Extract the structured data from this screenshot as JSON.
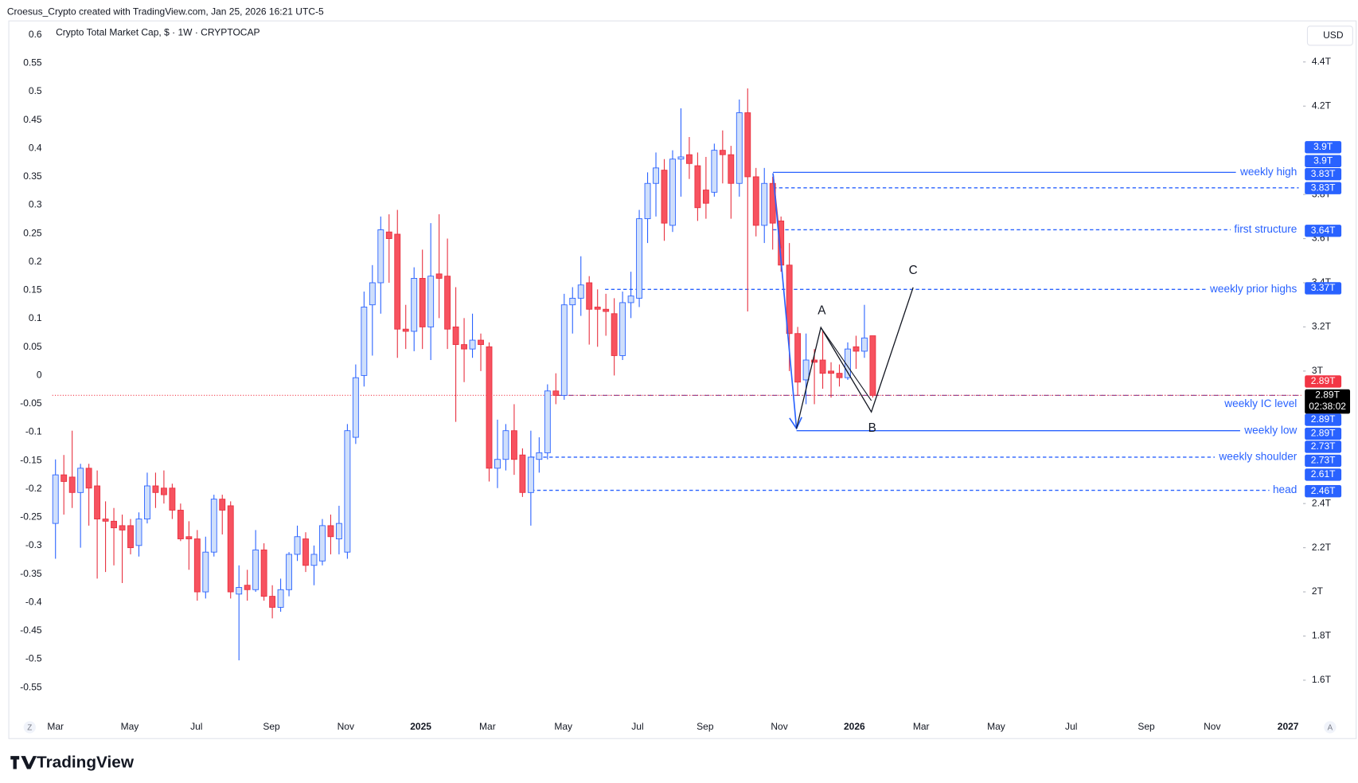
{
  "credit": "Croesus_Crypto created with TradingView.com, Jan 25, 2026 16:21 UTC-5",
  "brand": "TradingView",
  "currency": "USD",
  "scale_buttons": [
    "Z",
    "A"
  ],
  "chart_data": {
    "type": "candlestick",
    "title": "Crypto Total Market Cap, $ · 1W · CRYPTOCAP",
    "up_color": "#2962ff",
    "up_fill": "#cfdffb",
    "down_color": "#e8303f",
    "down_fill": "#f7525f",
    "level_color": "#2962ff",
    "grid": false,
    "xlim": [
      -5.6,
      149.6
    ],
    "xticks": [
      {
        "value": 0,
        "label": "Mar"
      },
      {
        "value": 8.9,
        "label": "May"
      },
      {
        "value": 16.9,
        "label": "Jul"
      },
      {
        "value": 25.9,
        "label": "Sep"
      },
      {
        "value": 34.8,
        "label": "Nov"
      },
      {
        "value": 43.8,
        "label": "2025"
      },
      {
        "value": 51.8,
        "label": "Mar"
      },
      {
        "value": 60.9,
        "label": "May"
      },
      {
        "value": 69.8,
        "label": "Jul"
      },
      {
        "value": 77.9,
        "label": "Sep"
      },
      {
        "value": 86.8,
        "label": "Nov"
      },
      {
        "value": 95.8,
        "label": "2026"
      },
      {
        "value": 103.8,
        "label": "Mar"
      },
      {
        "value": 112.8,
        "label": "May"
      },
      {
        "value": 121.8,
        "label": "Jul"
      },
      {
        "value": 130.8,
        "label": "Sep"
      },
      {
        "value": 138.7,
        "label": "Nov"
      },
      {
        "value": 147.8,
        "label": "2027"
      }
    ],
    "ylim": [
      -0.597,
      0.623
    ],
    "yticks": [
      0.6,
      0.55,
      0.5,
      0.45,
      0.4,
      0.35,
      0.3,
      0.25,
      0.2,
      0.15,
      0.1,
      0.05,
      0,
      -0.05,
      -0.1,
      -0.15,
      -0.2,
      -0.25,
      -0.3,
      -0.35,
      -0.4,
      -0.45,
      -0.5,
      -0.55
    ],
    "y2lim": [
      1.446,
      4.582
    ],
    "y2ticks": [
      {
        "value": 4.4,
        "label": "4.4T"
      },
      {
        "value": 4.2,
        "label": "4.2T"
      },
      {
        "value": 3.8,
        "label": "3.8T"
      },
      {
        "value": 3.6,
        "label": "3.6T"
      },
      {
        "value": 3.4,
        "label": "3.4T"
      },
      {
        "value": 3.2,
        "label": "3.2T"
      },
      {
        "value": 3,
        "label": "3T"
      },
      {
        "value": 2.4,
        "label": "2.4T"
      },
      {
        "value": 2.2,
        "label": "2.2T"
      },
      {
        "value": 2,
        "label": "2T"
      },
      {
        "value": 1.8,
        "label": "1.8T"
      },
      {
        "value": 1.6,
        "label": "1.6T"
      }
    ],
    "candles": {
      "axis": "y2",
      "open": [
        2.31,
        2.53,
        2.52,
        2.45,
        2.56,
        2.48,
        2.33,
        2.32,
        2.3,
        2.3,
        2.21,
        2.33,
        2.48,
        2.47,
        2.47,
        2.37,
        2.25,
        2.24,
        2.0,
        2.18,
        2.42,
        2.39,
        1.99,
        2.03,
        2.01,
        2.19,
        1.98,
        1.93,
        2.01,
        2.17,
        2.24,
        2.12,
        2.14,
        2.3,
        2.24,
        2.18,
        2.7,
        2.98,
        3.3,
        3.4,
        3.63,
        3.62,
        3.19,
        3.18,
        3.42,
        3.2,
        3.44,
        3.43,
        3.2,
        3.12,
        3.1,
        3.14,
        3.11,
        2.56,
        2.6,
        2.73,
        2.62,
        2.45,
        2.6,
        2.63,
        2.91,
        2.89,
        3.3,
        3.33,
        3.4,
        3.29,
        3.28,
        3.26,
        3.07,
        3.31,
        3.33,
        3.69,
        3.85,
        3.91,
        3.66,
        3.96,
        3.98,
        3.93,
        3.82,
        3.81,
        4.0,
        3.98,
        3.85,
        4.17,
        3.88,
        3.66,
        3.85,
        3.68,
        3.48,
        3.17,
        2.96,
        3.05,
        3.05,
        3.0,
        2.99,
        2.97,
        3.11,
        3.09,
        3.16
      ],
      "high": [
        2.6,
        2.62,
        2.73,
        2.58,
        2.58,
        2.55,
        2.41,
        2.38,
        2.35,
        2.33,
        2.36,
        2.54,
        2.54,
        2.55,
        2.49,
        2.4,
        2.32,
        2.28,
        2.25,
        2.44,
        2.44,
        2.41,
        2.12,
        2.1,
        2.28,
        2.22,
        2.03,
        2.06,
        2.18,
        2.3,
        2.27,
        2.21,
        2.33,
        2.35,
        2.39,
        2.76,
        3.03,
        3.36,
        3.48,
        3.7,
        3.71,
        3.73,
        3.3,
        3.47,
        3.55,
        3.67,
        3.71,
        3.6,
        3.38,
        3.24,
        3.26,
        3.17,
        3.13,
        2.78,
        2.76,
        2.85,
        2.65,
        2.73,
        2.7,
        2.94,
        2.99,
        3.35,
        3.38,
        3.52,
        3.43,
        3.37,
        3.35,
        3.33,
        3.36,
        3.45,
        3.73,
        3.9,
        3.99,
        3.96,
        4.0,
        4.19,
        4.06,
        3.99,
        3.97,
        4.03,
        4.09,
        4.02,
        4.23,
        4.28,
        3.92,
        3.92,
        3.88,
        3.7,
        3.58,
        3.2,
        3.17,
        3.1,
        3.18,
        3.04,
        3.03,
        3.13,
        3.16,
        3.3,
        3.16
      ],
      "low": [
        2.15,
        2.35,
        2.38,
        2.2,
        2.3,
        2.06,
        2.09,
        2.12,
        2.04,
        2.17,
        2.16,
        2.31,
        2.38,
        2.4,
        2.33,
        2.23,
        2.1,
        1.96,
        1.97,
        2.16,
        2.26,
        1.97,
        1.69,
        1.96,
        2.0,
        1.96,
        1.88,
        1.91,
        1.98,
        2.14,
        2.09,
        2.03,
        2.12,
        2.17,
        2.17,
        2.15,
        2.67,
        2.93,
        3.07,
        3.26,
        3.4,
        3.06,
        3.1,
        3.09,
        3.1,
        3.05,
        3.24,
        3.1,
        2.77,
        2.95,
        3.06,
        3.0,
        2.5,
        2.47,
        2.55,
        2.53,
        2.43,
        2.3,
        2.54,
        2.6,
        2.85,
        2.87,
        3.17,
        3.25,
        3.12,
        3.11,
        3.16,
        2.98,
        3.05,
        3.24,
        3.29,
        3.58,
        3.7,
        3.59,
        3.63,
        3.79,
        3.87,
        3.68,
        3.69,
        3.79,
        3.85,
        3.69,
        3.79,
        3.27,
        3.61,
        3.58,
        3.55,
        3.45,
        3.0,
        2.89,
        2.85,
        2.85,
        2.92,
        2.88,
        2.93,
        2.96,
        3.01,
        3.06,
        2.88
      ],
      "close": [
        2.53,
        2.5,
        2.45,
        2.56,
        2.47,
        2.33,
        2.32,
        2.29,
        2.28,
        2.2,
        2.33,
        2.48,
        2.45,
        2.44,
        2.37,
        2.24,
        2.24,
        2.0,
        2.18,
        2.42,
        2.37,
        2.0,
        2.02,
        2.01,
        2.19,
        1.98,
        1.93,
        2.01,
        2.17,
        2.25,
        2.12,
        2.17,
        2.3,
        2.25,
        2.31,
        2.73,
        2.97,
        3.29,
        3.4,
        3.64,
        3.6,
        3.19,
        3.18,
        3.42,
        3.2,
        3.43,
        3.42,
        3.19,
        3.12,
        3.1,
        3.14,
        3.12,
        2.56,
        2.6,
        2.73,
        2.6,
        2.45,
        2.61,
        2.63,
        2.91,
        2.89,
        3.3,
        3.33,
        3.39,
        3.28,
        3.28,
        3.27,
        3.07,
        3.31,
        3.34,
        3.69,
        3.85,
        3.92,
        3.67,
        3.96,
        3.97,
        3.94,
        3.74,
        3.76,
        4.0,
        3.98,
        3.85,
        4.17,
        3.88,
        3.66,
        3.85,
        3.67,
        3.48,
        3.17,
        2.95,
        3.05,
        3.04,
        2.99,
        2.99,
        2.97,
        3.1,
        3.09,
        3.15,
        2.89
      ]
    },
    "levels": [
      {
        "value": 3.9,
        "label": "weekly high",
        "dash": "solid"
      },
      {
        "value": 3.83,
        "dash": "dashed"
      },
      {
        "value": 3.64,
        "label": "first structure",
        "dash": "dashed"
      },
      {
        "value": 3.37,
        "label": "weekly prior highs",
        "dash": "dashed"
      },
      {
        "value": 2.89,
        "label": "weekly IC level",
        "dash": "dashdot"
      },
      {
        "value": 2.73,
        "label": "weekly low",
        "dash": "solid"
      },
      {
        "value": 2.61,
        "label": "weekly shoulder",
        "dash": "dashed"
      },
      {
        "value": 2.46,
        "label": "head",
        "dash": "dashed"
      }
    ],
    "badges": [
      {
        "text": "3.9T",
        "color": "#2962ff"
      },
      {
        "text": "3.9T",
        "color": "#2962ff"
      },
      {
        "text": "3.83T",
        "color": "#2962ff"
      },
      {
        "text": "3.83T",
        "color": "#2962ff"
      },
      {
        "text": "3.64T",
        "color": "#2962ff"
      },
      {
        "text": "3.37T",
        "color": "#2962ff"
      },
      {
        "text": "2.89T",
        "color": "#f23645"
      },
      {
        "text": "2.89T",
        "color": "#000000",
        "sub": "02:38:02"
      },
      {
        "text": "2.89T",
        "color": "#2962ff"
      },
      {
        "text": "2.89T",
        "color": "#2962ff"
      },
      {
        "text": "2.73T",
        "color": "#2962ff"
      },
      {
        "text": "2.73T",
        "color": "#2962ff"
      },
      {
        "text": "2.61T",
        "color": "#2962ff"
      },
      {
        "text": "2.46T",
        "color": "#2962ff"
      }
    ],
    "annotations": [
      "A",
      "B",
      "C"
    ]
  }
}
